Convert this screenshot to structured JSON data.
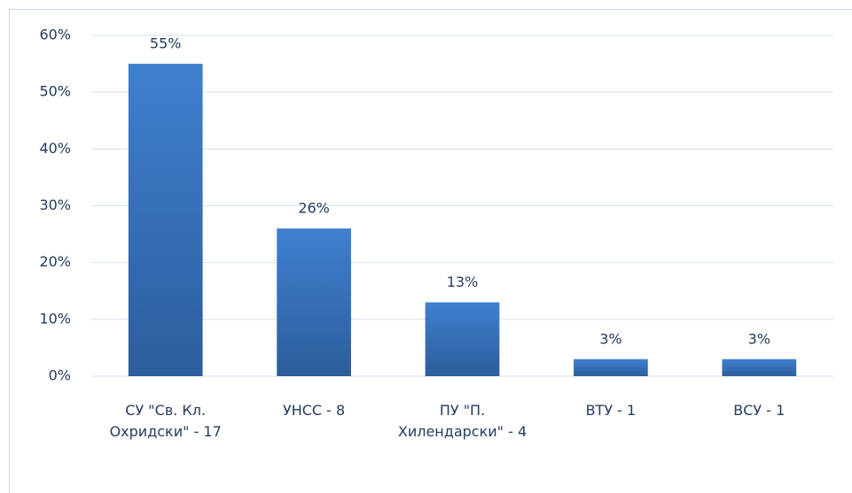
{
  "chart_data": {
    "type": "bar",
    "categories": [
      "СУ \"Св. Кл. Охридски\" - 17",
      "УНСС - 8",
      "ПУ \"П. Хилендарски\" - 4",
      "ВТУ - 1",
      "ВСУ - 1"
    ],
    "values": [
      55,
      26,
      13,
      3,
      3
    ],
    "value_labels": [
      "55%",
      "26%",
      "13%",
      "3%",
      "3%"
    ],
    "color": "#3a75c0",
    "ylim": [
      0,
      60
    ],
    "yticks": [
      {
        "value": 0,
        "label": "0%"
      },
      {
        "value": 10,
        "label": "10%"
      },
      {
        "value": 20,
        "label": "20%"
      },
      {
        "value": 30,
        "label": "30%"
      },
      {
        "value": 40,
        "label": "40%"
      },
      {
        "value": 50,
        "label": "50%"
      },
      {
        "value": 60,
        "label": "60%"
      }
    ],
    "grid": true
  }
}
